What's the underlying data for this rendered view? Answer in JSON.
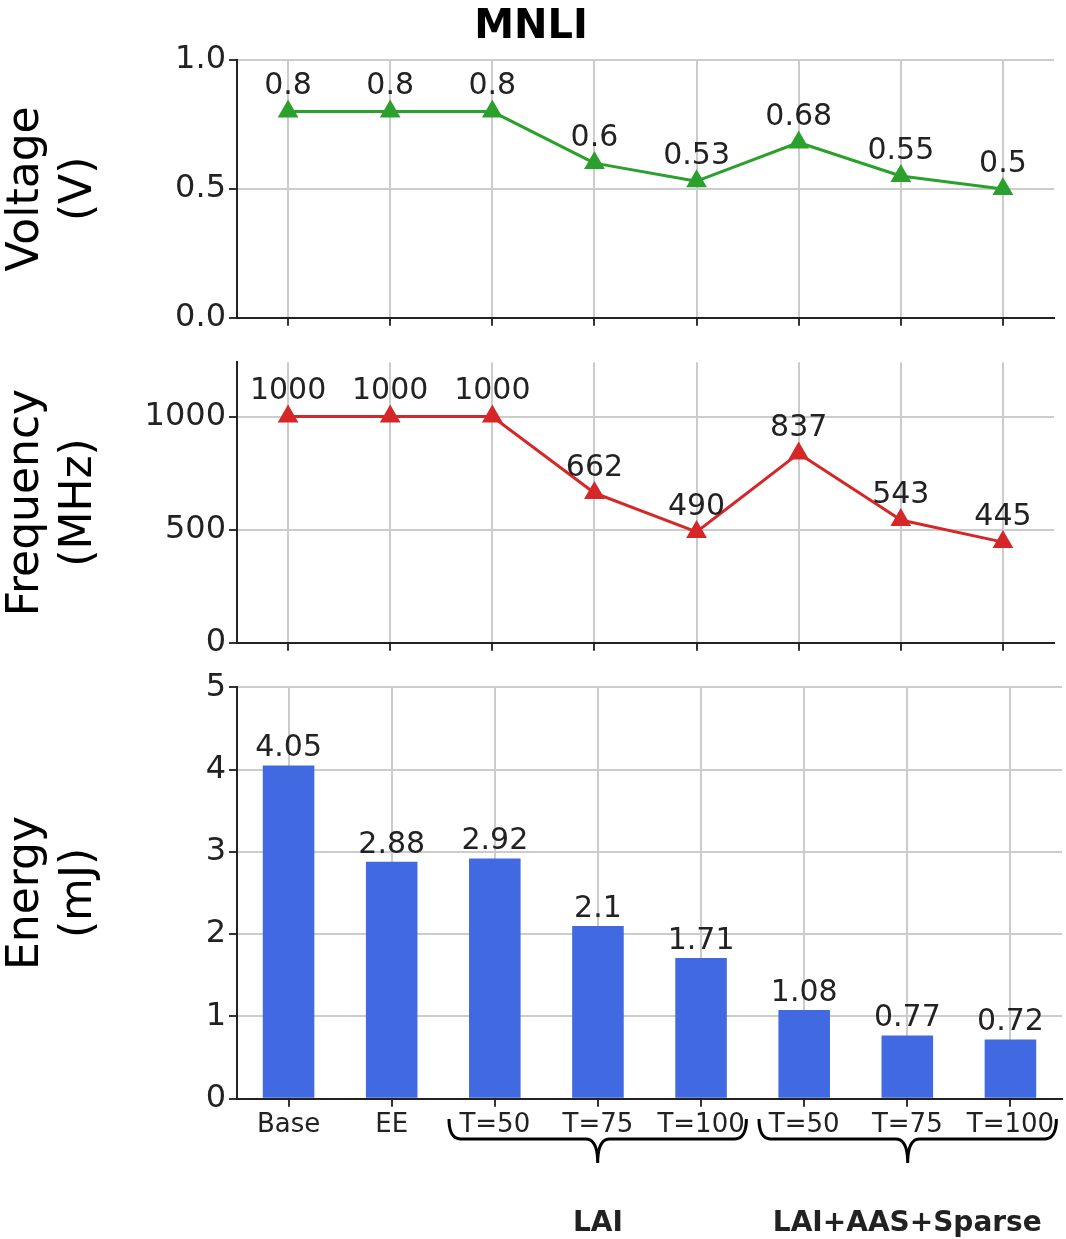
{
  "chart_data": [
    {
      "type": "line",
      "title": "MNLI",
      "ylabel": "Voltage\n(V)",
      "categories": [
        null,
        null,
        null,
        null,
        null,
        null,
        null,
        null
      ],
      "series": [
        {
          "color": "#2ca02c",
          "values": [
            0.8,
            0.8,
            0.8,
            0.6,
            0.53,
            0.68,
            0.55,
            0.5
          ]
        }
      ],
      "ylim": [
        0,
        1
      ],
      "yticks": [
        {
          "value": 0,
          "label": "0.0"
        },
        {
          "value": 0.5,
          "label": "0.5"
        },
        {
          "value": 1,
          "label": "1.0"
        }
      ],
      "grid": true,
      "marker": "triangle",
      "data_labels": true,
      "tick_labels": "y"
    },
    {
      "type": "line",
      "ylabel": "Frequency\n(MHz)",
      "categories": [
        null,
        null,
        null,
        null,
        null,
        null,
        null,
        null
      ],
      "series": [
        {
          "color": "#d62728",
          "values": [
            1000,
            1000,
            1000,
            662,
            490,
            837,
            543,
            445
          ]
        }
      ],
      "ylim": [
        0,
        1240
      ],
      "yticks": [
        0,
        500,
        1000
      ],
      "grid": true,
      "marker": "triangle",
      "data_labels": true,
      "tick_labels": "y"
    },
    {
      "type": "bar",
      "ylabel": "Energy\n(mJ)",
      "categories": [
        "Base",
        "EE",
        "T=50",
        "T=75",
        "T=100",
        "T=50",
        "T=75",
        "T=100"
      ],
      "series": [
        {
          "color": "#4169e1",
          "values": [
            4.05,
            2.88,
            2.92,
            2.1,
            1.71,
            1.08,
            0.77,
            0.72
          ]
        }
      ],
      "ylim": [
        0,
        5
      ],
      "yticks": [
        0,
        1,
        2,
        3,
        4,
        5
      ],
      "grid": true,
      "data_labels": true,
      "annotations": [
        "LAI",
        "LAI+AAS+Sparse"
      ]
    }
  ]
}
